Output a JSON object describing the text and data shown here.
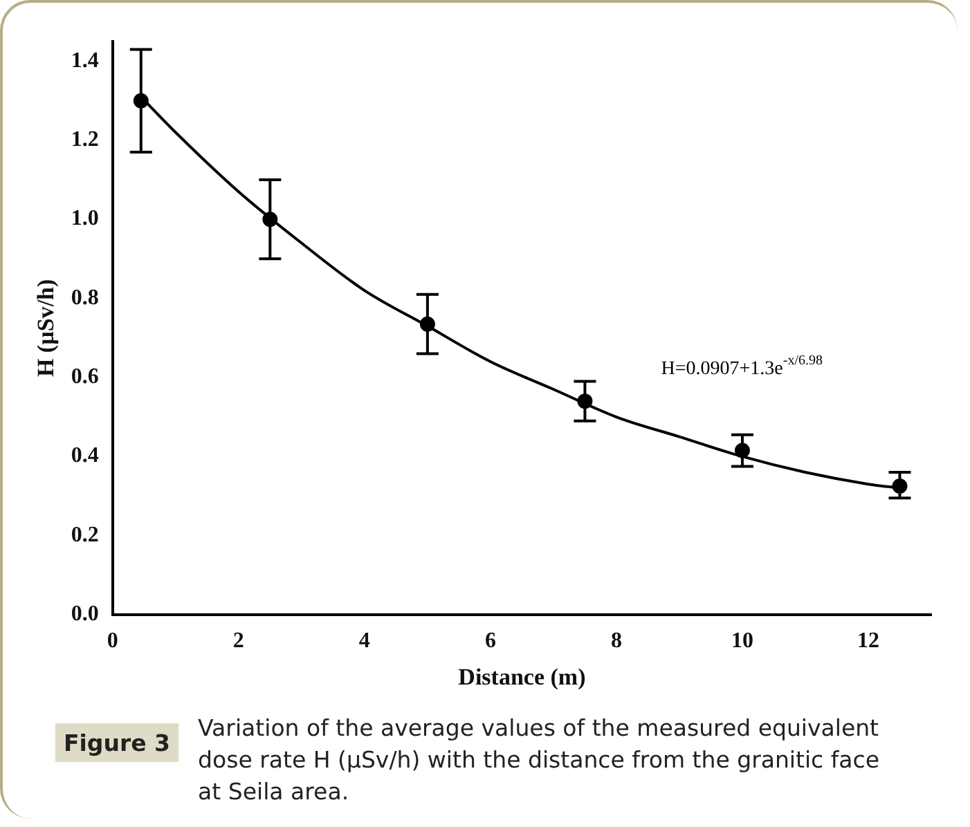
{
  "chart_data": {
    "type": "scatter",
    "xlabel": "Distance (m)",
    "ylabel": "H (µSv/h)",
    "xlim": [
      0,
      13
    ],
    "xticks": [
      0,
      2,
      4,
      6,
      8,
      10,
      12
    ],
    "ylim": [
      0,
      1.45
    ],
    "yticks": [
      {
        "value": 0,
        "label": "0.0"
      },
      {
        "value": 0.2,
        "label": "0.2"
      },
      {
        "value": 0.4,
        "label": "0.4"
      },
      {
        "value": 0.6,
        "label": "0.6"
      },
      {
        "value": 0.8,
        "label": "0.8"
      },
      {
        "value": 1,
        "label": "1.0"
      },
      {
        "value": 1.2,
        "label": "1.2"
      },
      {
        "value": 1.4,
        "label": "1.4"
      }
    ],
    "grid": false,
    "legend": false,
    "series": [
      {
        "color": "#000000",
        "marker": "circle",
        "x": [
          0.45,
          2.5,
          5,
          7.5,
          10,
          12.5
        ],
        "values": [
          1.3,
          1.0,
          0.735,
          0.54,
          0.415,
          0.325
        ],
        "errors": [
          [
            1.17,
            1.43
          ],
          [
            0.9,
            1.1
          ],
          [
            0.66,
            0.81
          ],
          [
            0.49,
            0.59
          ],
          [
            0.375,
            0.455
          ],
          [
            0.295,
            0.36
          ]
        ]
      },
      {
        "type": "line",
        "color": "#000000",
        "marker": "none",
        "line_style": "solid",
        "x": [
          0.45,
          1,
          2,
          3,
          4,
          5,
          6,
          7,
          8,
          9,
          10,
          11,
          12,
          12.5
        ],
        "values": [
          1.31,
          1.22,
          1.07,
          0.94,
          0.82,
          0.73,
          0.64,
          0.57,
          0.5,
          0.45,
          0.4,
          0.36,
          0.33,
          0.32
        ]
      }
    ],
    "annotations": [
      "H=0.0907+1.3e$^{-x/6.98}$",
      "Figure 3",
      "Variation of the average values of the measured equivalent dose rate H (µSv/h) with the distance from the granitic face at Seila area."
    ]
  }
}
